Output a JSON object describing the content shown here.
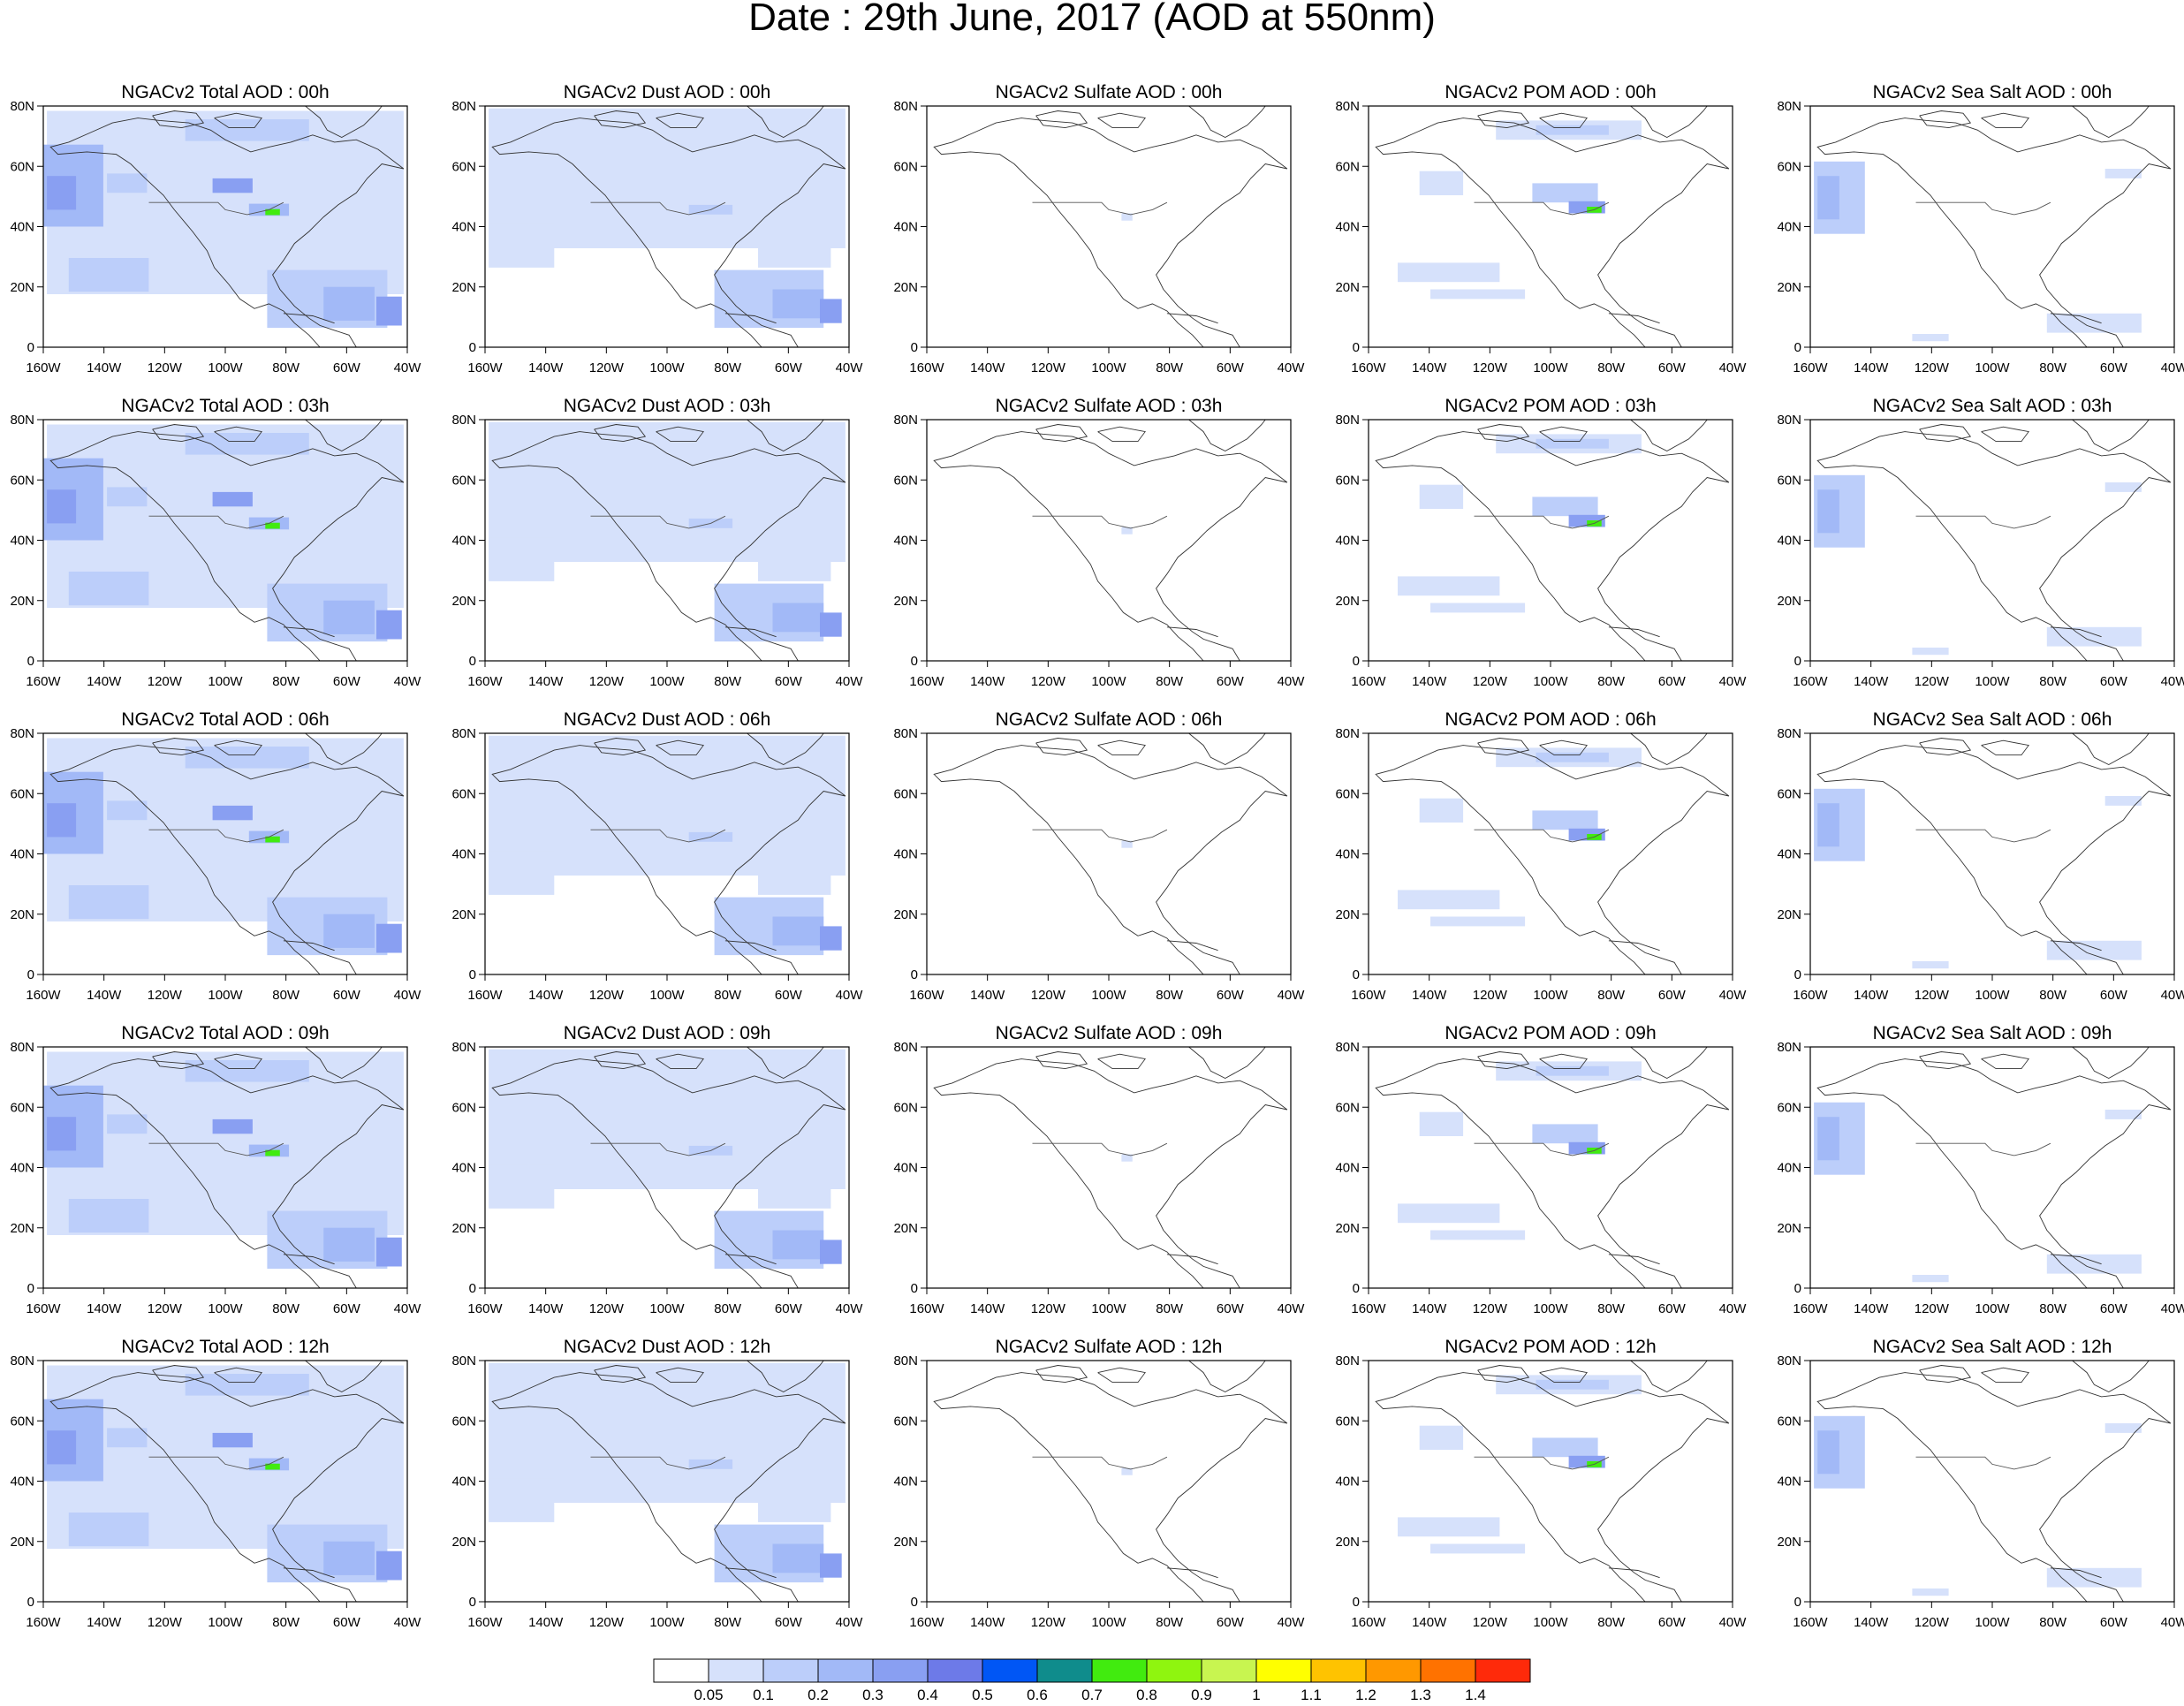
{
  "title": "Date : 29th June, 2017 (AOD at 550nm)",
  "lon_ticks": [
    "160W",
    "140W",
    "120W",
    "100W",
    "80W",
    "60W",
    "40W"
  ],
  "lat_ticks": [
    "0",
    "20N",
    "40N",
    "60N",
    "80N"
  ],
  "panel_titles": [
    [
      "NGACv2 Total AOD : 00h",
      "NGACv2 Dust AOD : 00h",
      "NGACv2 Sulfate AOD : 00h",
      "NGACv2 POM AOD : 00h",
      "NGACv2 Sea Salt AOD : 00h"
    ],
    [
      "NGACv2 Total AOD : 03h",
      "NGACv2 Dust AOD : 03h",
      "NGACv2 Sulfate AOD : 03h",
      "NGACv2 POM AOD : 03h",
      "NGACv2 Sea Salt AOD : 03h"
    ],
    [
      "NGACv2 Total AOD : 06h",
      "NGACv2 Dust AOD : 06h",
      "NGACv2 Sulfate AOD : 06h",
      "NGACv2 POM AOD : 06h",
      "NGACv2 Sea Salt AOD : 06h"
    ],
    [
      "NGACv2 Total AOD : 09h",
      "NGACv2 Dust AOD : 09h",
      "NGACv2 Sulfate AOD : 09h",
      "NGACv2 POM AOD : 09h",
      "NGACv2 Sea Salt  AOD : 09h"
    ],
    [
      "NGACv2 Total AOD  : 12h",
      "NGACv2 Dust AOD : 12h",
      "NGACv2 Sulfate AOD : 12h",
      "NGACv2 POM  AOD : 12h",
      "NGACv2 Sea Salt  AOD : 12h"
    ]
  ],
  "colorbar": {
    "labels": [
      "0.05",
      "0.1",
      "0.2",
      "0.3",
      "0.4",
      "0.5",
      "0.6",
      "0.7",
      "0.8",
      "0.9",
      "1",
      "1.1",
      "1.2",
      "1.3",
      "1.4"
    ],
    "colors": [
      "#ffffff",
      "#d6e1fb",
      "#bccefa",
      "#a2b9f7",
      "#899ff2",
      "#6d7ae8",
      "#0056f5",
      "#0f8c8c",
      "#41eb0f",
      "#8ff50f",
      "#c8f550",
      "#ffff00",
      "#ffc300",
      "#ff9800",
      "#ff7200",
      "#ff2a0a"
    ]
  }
}
